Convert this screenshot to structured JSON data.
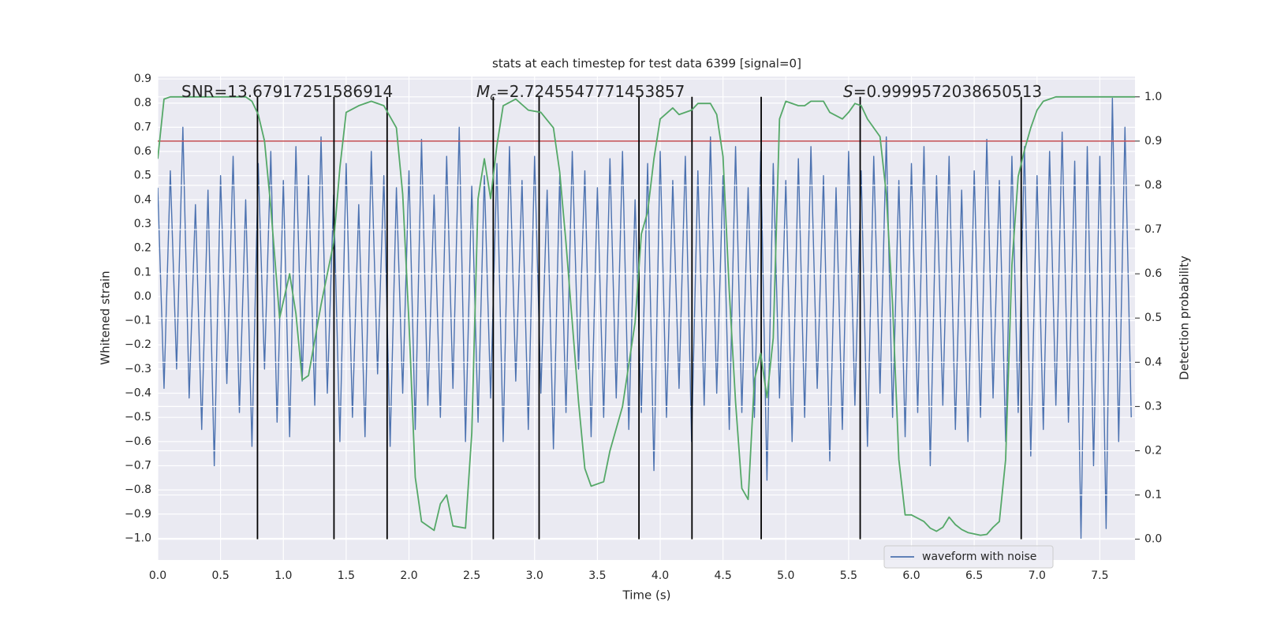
{
  "chart_data": {
    "type": "line",
    "title": "stats at each timestep for test data 6399 [signal=0]",
    "xlabel": "Time (s)",
    "ylabel": "Whitened strain",
    "y2label": "Detection probability",
    "xlim": [
      0,
      7.78
    ],
    "ylim": [
      -1.09,
      0.91
    ],
    "y2lim": [
      -0.047,
      1.046
    ],
    "grid": true,
    "legend": "lower right",
    "xticks": [
      {
        "value": 0,
        "label": "0.0"
      },
      {
        "value": 0.5,
        "label": "0.5"
      },
      {
        "value": 1,
        "label": "1.0"
      },
      {
        "value": 1.5,
        "label": "1.5"
      },
      {
        "value": 2,
        "label": "2.0"
      },
      {
        "value": 2.5,
        "label": "2.5"
      },
      {
        "value": 3,
        "label": "3.0"
      },
      {
        "value": 3.5,
        "label": "3.5"
      },
      {
        "value": 4,
        "label": "4.0"
      },
      {
        "value": 4.5,
        "label": "4.5"
      },
      {
        "value": 5,
        "label": "5.0"
      },
      {
        "value": 5.5,
        "label": "5.5"
      },
      {
        "value": 6,
        "label": "6.0"
      },
      {
        "value": 6.5,
        "label": "6.5"
      },
      {
        "value": 7,
        "label": "7.0"
      },
      {
        "value": 7.5,
        "label": "7.5"
      }
    ],
    "yticks": [
      {
        "value": -1,
        "label": "−1.0"
      },
      {
        "value": -0.9,
        "label": "−0.9"
      },
      {
        "value": -0.8,
        "label": "−0.8"
      },
      {
        "value": -0.7,
        "label": "−0.7"
      },
      {
        "value": -0.6,
        "label": "−0.6"
      },
      {
        "value": -0.5,
        "label": "−0.5"
      },
      {
        "value": -0.4,
        "label": "−0.4"
      },
      {
        "value": -0.3,
        "label": "−0.3"
      },
      {
        "value": -0.2,
        "label": "−0.2"
      },
      {
        "value": -0.1,
        "label": "−0.1"
      },
      {
        "value": 0,
        "label": "0.0"
      },
      {
        "value": 0.1,
        "label": "0.1"
      },
      {
        "value": 0.2,
        "label": "0.2"
      },
      {
        "value": 0.3,
        "label": "0.3"
      },
      {
        "value": 0.4,
        "label": "0.4"
      },
      {
        "value": 0.5,
        "label": "0.5"
      },
      {
        "value": 0.6,
        "label": "0.6"
      },
      {
        "value": 0.7,
        "label": "0.7"
      },
      {
        "value": 0.8,
        "label": "0.8"
      },
      {
        "value": 0.9,
        "label": "0.9"
      }
    ],
    "y2ticks": [
      {
        "value": 0,
        "label": "0.0"
      },
      {
        "value": 0.1,
        "label": "0.1"
      },
      {
        "value": 0.2,
        "label": "0.2"
      },
      {
        "value": 0.3,
        "label": "0.3"
      },
      {
        "value": 0.4,
        "label": "0.4"
      },
      {
        "value": 0.5,
        "label": "0.5"
      },
      {
        "value": 0.6,
        "label": "0.6"
      },
      {
        "value": 0.7,
        "label": "0.7"
      },
      {
        "value": 0.8,
        "label": "0.8"
      },
      {
        "value": 0.9,
        "label": "0.9"
      },
      {
        "value": 1,
        "label": "1.0"
      }
    ],
    "annotations": [
      {
        "text": "SNR=13.67917251586914"
      },
      {
        "symbol": "M",
        "subscript": "c",
        "text": "=2.7245547771453857"
      },
      {
        "symbol": "S",
        "text": "=0.9999572038650513"
      }
    ],
    "series": [
      {
        "name": "waveform with noise",
        "color": "#4c72b0",
        "x": [
          0,
          0.05,
          0.1,
          0.15,
          0.2,
          0.25,
          0.3,
          0.35,
          0.4,
          0.45,
          0.5,
          0.55,
          0.6,
          0.65,
          0.7,
          0.75,
          0.8,
          0.85,
          0.9,
          0.95,
          1,
          1.05,
          1.1,
          1.15,
          1.2,
          1.25,
          1.3,
          1.35,
          1.4,
          1.45,
          1.5,
          1.55,
          1.6,
          1.65,
          1.7,
          1.75,
          1.8,
          1.85,
          1.9,
          1.95,
          2,
          2.05,
          2.1,
          2.15,
          2.2,
          2.25,
          2.3,
          2.35,
          2.4,
          2.45,
          2.5,
          2.55,
          2.6,
          2.65,
          2.7,
          2.75,
          2.8,
          2.85,
          2.9,
          2.95,
          3,
          3.05,
          3.1,
          3.15,
          3.2,
          3.25,
          3.3,
          3.35,
          3.4,
          3.45,
          3.5,
          3.55,
          3.6,
          3.65,
          3.7,
          3.75,
          3.8,
          3.85,
          3.9,
          3.95,
          4,
          4.05,
          4.1,
          4.15,
          4.2,
          4.25,
          4.3,
          4.35,
          4.4,
          4.45,
          4.5,
          4.55,
          4.6,
          4.65,
          4.7,
          4.75,
          4.8,
          4.85,
          4.9,
          4.95,
          5,
          5.05,
          5.1,
          5.15,
          5.2,
          5.25,
          5.3,
          5.35,
          5.4,
          5.45,
          5.5,
          5.55,
          5.6,
          5.65,
          5.7,
          5.75,
          5.8,
          5.85,
          5.9,
          5.95,
          6,
          6.05,
          6.1,
          6.15,
          6.2,
          6.25,
          6.3,
          6.35,
          6.4,
          6.45,
          6.5,
          6.55,
          6.6,
          6.65,
          6.7,
          6.75,
          6.8,
          6.85,
          6.9,
          6.95,
          7,
          7.05,
          7.1,
          7.15,
          7.2,
          7.25,
          7.3,
          7.35,
          7.4,
          7.45,
          7.5,
          7.55,
          7.6,
          7.65,
          7.7,
          7.75
        ],
        "values": [
          0.45,
          -0.38,
          0.52,
          -0.3,
          0.7,
          -0.42,
          0.38,
          -0.55,
          0.44,
          -0.7,
          0.5,
          -0.36,
          0.58,
          -0.48,
          0.4,
          -0.62,
          0.55,
          -0.3,
          0.6,
          -0.52,
          0.48,
          -0.58,
          0.62,
          -0.35,
          0.5,
          -0.45,
          0.66,
          -0.4,
          0.42,
          -0.6,
          0.55,
          -0.5,
          0.38,
          -0.58,
          0.6,
          -0.32,
          0.5,
          -0.62,
          0.45,
          -0.4,
          0.52,
          -0.55,
          0.65,
          -0.45,
          0.42,
          -0.5,
          0.58,
          -0.38,
          0.7,
          -0.6,
          0.46,
          -0.52,
          0.5,
          -0.42,
          0.55,
          -0.6,
          0.62,
          -0.35,
          0.48,
          -0.55,
          0.58,
          -0.4,
          0.44,
          -0.63,
          0.5,
          -0.48,
          0.6,
          -0.3,
          0.52,
          -0.58,
          0.45,
          -0.5,
          0.57,
          -0.42,
          0.6,
          -0.55,
          0.4,
          -0.48,
          0.55,
          -0.72,
          0.6,
          -0.5,
          0.48,
          -0.38,
          0.58,
          -0.6,
          0.52,
          -0.45,
          0.66,
          -0.4,
          0.5,
          -0.55,
          0.62,
          -0.48,
          0.45,
          -0.5,
          0.6,
          -0.76,
          0.55,
          -0.42,
          0.48,
          -0.6,
          0.57,
          -0.5,
          0.62,
          -0.38,
          0.5,
          -0.68,
          0.45,
          -0.55,
          0.6,
          -0.45,
          0.52,
          -0.62,
          0.58,
          -0.4,
          0.66,
          -0.5,
          0.48,
          -0.58,
          0.55,
          -0.48,
          0.62,
          -0.7,
          0.5,
          -0.45,
          0.58,
          -0.55,
          0.44,
          -0.6,
          0.52,
          -0.5,
          0.65,
          -0.42,
          0.48,
          -0.6,
          0.58,
          -0.48,
          0.62,
          -0.66,
          0.5,
          -0.55,
          0.6,
          -0.45,
          0.68,
          -0.52,
          0.56,
          -1.0,
          0.62,
          -0.7,
          0.58,
          -0.96,
          0.82,
          -0.6,
          0.7,
          -0.5
        ]
      },
      {
        "color": "#55a868",
        "axis": "y2",
        "x": [
          0,
          0.05,
          0.1,
          0.2,
          0.3,
          0.4,
          0.5,
          0.6,
          0.7,
          0.75,
          0.8,
          0.85,
          0.9,
          0.97,
          1.05,
          1.1,
          1.15,
          1.2,
          1.3,
          1.4,
          1.45,
          1.5,
          1.6,
          1.7,
          1.8,
          1.9,
          1.95,
          2.0,
          2.05,
          2.1,
          2.2,
          2.25,
          2.3,
          2.35,
          2.45,
          2.5,
          2.55,
          2.6,
          2.65,
          2.7,
          2.75,
          2.85,
          2.95,
          3.05,
          3.15,
          3.2,
          3.25,
          3.35,
          3.4,
          3.45,
          3.55,
          3.6,
          3.7,
          3.8,
          3.85,
          3.9,
          3.95,
          4.0,
          4.1,
          4.15,
          4.25,
          4.3,
          4.4,
          4.45,
          4.5,
          4.55,
          4.6,
          4.65,
          4.7,
          4.75,
          4.8,
          4.85,
          4.9,
          4.95,
          5.0,
          5.1,
          5.15,
          5.2,
          5.3,
          5.35,
          5.45,
          5.5,
          5.55,
          5.6,
          5.65,
          5.75,
          5.8,
          5.85,
          5.9,
          5.95,
          6.0,
          6.1,
          6.15,
          6.2,
          6.25,
          6.3,
          6.35,
          6.4,
          6.45,
          6.55,
          6.6,
          6.65,
          6.7,
          6.75,
          6.8,
          6.85,
          6.9,
          6.95,
          7.0,
          7.05,
          7.15,
          7.5,
          7.78
        ],
        "values": [
          0.86,
          0.995,
          1.0,
          1.0,
          1.0,
          1.0,
          1.0,
          1.0,
          1.0,
          0.99,
          0.96,
          0.9,
          0.75,
          0.5,
          0.6,
          0.51,
          0.36,
          0.37,
          0.53,
          0.67,
          0.84,
          0.965,
          0.98,
          0.99,
          0.98,
          0.93,
          0.78,
          0.49,
          0.14,
          0.04,
          0.02,
          0.08,
          0.1,
          0.03,
          0.025,
          0.24,
          0.77,
          0.86,
          0.77,
          0.89,
          0.98,
          0.995,
          0.97,
          0.965,
          0.93,
          0.83,
          0.67,
          0.31,
          0.16,
          0.12,
          0.13,
          0.2,
          0.3,
          0.49,
          0.69,
          0.74,
          0.86,
          0.95,
          0.975,
          0.96,
          0.97,
          0.985,
          0.985,
          0.96,
          0.865,
          0.56,
          0.31,
          0.115,
          0.09,
          0.36,
          0.42,
          0.32,
          0.455,
          0.95,
          0.99,
          0.98,
          0.98,
          0.99,
          0.99,
          0.965,
          0.95,
          0.965,
          0.985,
          0.98,
          0.95,
          0.91,
          0.78,
          0.53,
          0.18,
          0.055,
          0.055,
          0.04,
          0.025,
          0.018,
          0.027,
          0.05,
          0.033,
          0.022,
          0.015,
          0.009,
          0.011,
          0.027,
          0.04,
          0.18,
          0.62,
          0.82,
          0.88,
          0.93,
          0.97,
          0.99,
          1.0,
          1.0,
          1.0
        ]
      }
    ],
    "hline": {
      "value": 0.9,
      "axis": "y2",
      "color": "#c44e52"
    },
    "vlines": {
      "x": [
        0.794,
        1.403,
        1.826,
        2.671,
        3.036,
        3.831,
        4.253,
        4.804,
        5.592,
        6.874
      ],
      "range": [
        0,
        1
      ],
      "axis": "y2",
      "color": "#000000"
    }
  }
}
